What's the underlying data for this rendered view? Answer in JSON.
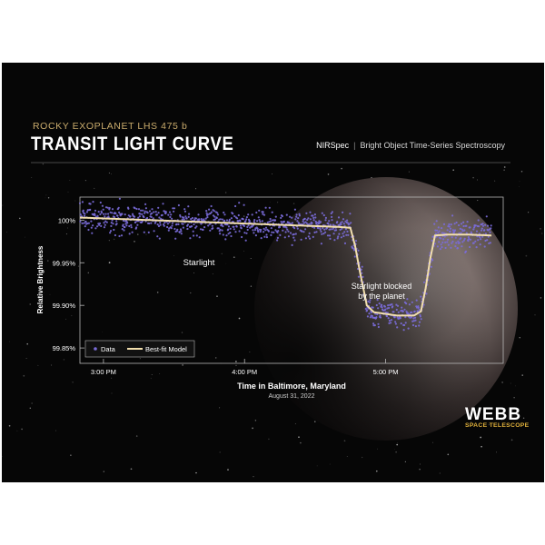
{
  "header": {
    "subtitle": "ROCKY EXOPLANET LHS 475 b",
    "title": "TRANSIT LIGHT CURVE",
    "instrument": "NIRSpec",
    "mode": "Bright Object Time-Series Spectroscopy"
  },
  "branding": {
    "name": "WEBB",
    "tagline": "SPACE TELESCOPE"
  },
  "colors": {
    "background": "#060606",
    "data_points": "#7a6cd8",
    "model_line": "#f2dfad",
    "accent": "#c9ab6c"
  },
  "chart_data": {
    "type": "scatter",
    "xlabel": "Time in Baltimore, Maryland",
    "xlabel_sub": "August 31, 2022",
    "ylabel": "Relative Brightness",
    "x_ticks": [
      "3:00 PM",
      "4:00 PM",
      "5:00 PM"
    ],
    "y_ticks": [
      "100%",
      "99.95%",
      "99.90%",
      "99.85%"
    ],
    "ylim": [
      99.832,
      100.027
    ],
    "xlim": [
      "14:50",
      "15:20"
    ],
    "legend": {
      "position": "bottom-left",
      "data": "Data",
      "model": "Best-fit Model"
    },
    "annotations": {
      "starlight": "Starlight",
      "blocked_line1": "Starlight blocked",
      "blocked_line2": "by the planet"
    },
    "model": {
      "x": [
        "14:50",
        "15:30",
        "16:10",
        "16:40",
        "16:45",
        "16:47",
        "16:49",
        "16:52",
        "16:55",
        "17:05",
        "17:12",
        "17:15",
        "17:17",
        "17:19",
        "17:21",
        "17:26",
        "17:35",
        "17:45"
      ],
      "y": [
        100.003,
        99.999,
        99.995,
        99.992,
        99.991,
        99.97,
        99.94,
        99.9,
        99.892,
        99.888,
        99.888,
        99.893,
        99.92,
        99.955,
        99.982,
        99.983,
        99.983,
        99.982
      ]
    },
    "series": [
      {
        "name": "Data",
        "description": "scatter of individual measurements around the model, ~0.01% spread"
      },
      {
        "name": "Best-fit Model",
        "description": "line"
      }
    ]
  }
}
